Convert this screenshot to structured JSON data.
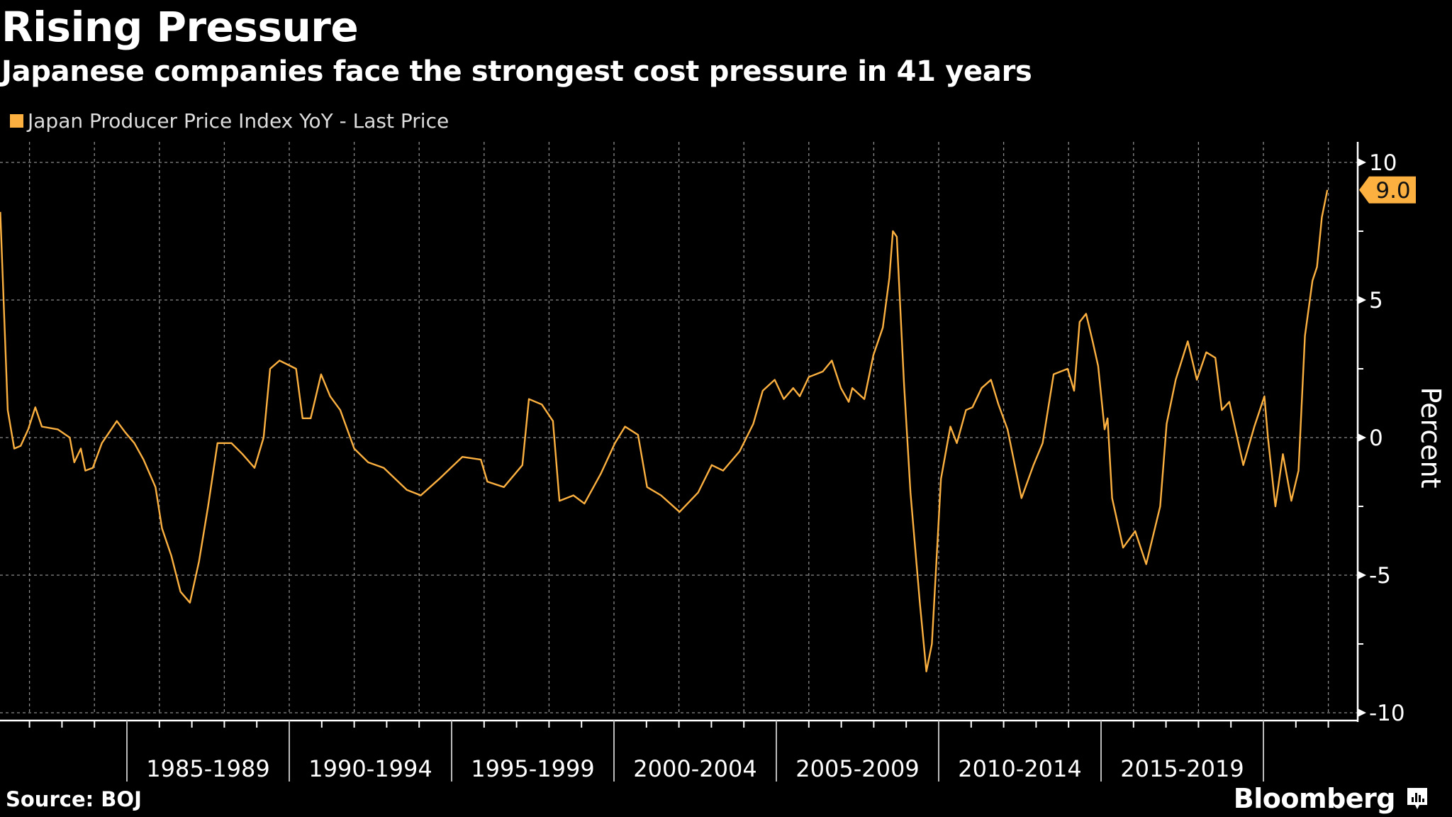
{
  "header": {
    "title": "Rising Pressure",
    "subtitle": "Japanese companies face the strongest cost pressure in 41 years"
  },
  "footer": {
    "source": "Source: BOJ",
    "brand": "Bloomberg"
  },
  "colors": {
    "series": "#fbb040",
    "background": "#000000",
    "grid": "#8a8a8a",
    "axis": "#ffffff"
  },
  "chart_data": {
    "type": "line",
    "title": "Rising Pressure",
    "subtitle": "Japanese companies face the strongest cost pressure in 41 years",
    "xlabel": "",
    "ylabel": "Percent",
    "ylim": [
      -10,
      10
    ],
    "xlim": [
      1981.1,
      2022.8
    ],
    "y_ticks": [
      10,
      5,
      0,
      -5,
      -10
    ],
    "y_tick_labels": [
      "10",
      "5",
      "0",
      "-5",
      "-10"
    ],
    "x_period_labels": [
      {
        "label": "1985-1989",
        "start": 1985,
        "end": 1990
      },
      {
        "label": "1990-1994",
        "start": 1990,
        "end": 1995
      },
      {
        "label": "1995-1999",
        "start": 1995,
        "end": 2000
      },
      {
        "label": "2000-2004",
        "start": 2000,
        "end": 2005
      },
      {
        "label": "2005-2009",
        "start": 2005,
        "end": 2010
      },
      {
        "label": "2010-2014",
        "start": 2010,
        "end": 2015
      },
      {
        "label": "2015-2019",
        "start": 2015,
        "end": 2020
      }
    ],
    "grid": true,
    "legend": {
      "position": "top-left",
      "entries": [
        "Japan Producer Price Index YoY - Last Price"
      ]
    },
    "last_value_label": "9.0",
    "series": [
      {
        "name": "Japan Producer Price Index YoY - Last Price",
        "color": "#fbb040",
        "x": [
          1981.1,
          1981.33,
          1981.53,
          1981.73,
          1981.96,
          1982.18,
          1982.38,
          1982.87,
          1983.24,
          1983.38,
          1983.58,
          1983.72,
          1983.95,
          1984.23,
          1984.46,
          1984.69,
          1984.94,
          1985.23,
          1985.51,
          1985.88,
          1986.08,
          1986.37,
          1986.65,
          1986.94,
          1987.22,
          1987.5,
          1987.79,
          1988.22,
          1988.56,
          1988.93,
          1989.21,
          1989.41,
          1989.7,
          1990.21,
          1990.41,
          1990.66,
          1990.98,
          1991.26,
          1991.57,
          1992.0,
          1992.43,
          1992.91,
          1993.62,
          1994.05,
          1994.62,
          1995.33,
          1995.9,
          1996.1,
          1996.61,
          1997.18,
          1997.38,
          1997.78,
          1998.12,
          1998.32,
          1998.75,
          1999.09,
          1999.6,
          2000.03,
          2000.34,
          2000.74,
          2001.02,
          2001.45,
          2002.02,
          2002.59,
          2003.01,
          2003.36,
          2003.87,
          2004.29,
          2004.58,
          2004.95,
          2005.23,
          2005.52,
          2005.72,
          2006.0,
          2006.43,
          2006.71,
          2006.99,
          2007.23,
          2007.34,
          2007.71,
          2007.99,
          2008.28,
          2008.48,
          2008.59,
          2008.71,
          2008.93,
          2009.13,
          2009.42,
          2009.62,
          2009.79,
          2010.07,
          2010.36,
          2010.56,
          2010.84,
          2011.04,
          2011.32,
          2011.61,
          2011.84,
          2012.12,
          2012.55,
          2012.92,
          2013.2,
          2013.54,
          2013.97,
          2014.17,
          2014.34,
          2014.54,
          2014.74,
          2014.91,
          2015.11,
          2015.2,
          2015.34,
          2015.68,
          2016.05,
          2016.39,
          2016.82,
          2017.02,
          2017.3,
          2017.67,
          2017.95,
          2018.24,
          2018.52,
          2018.72,
          2018.95,
          2019.38,
          2019.72,
          2020.03,
          2020.14,
          2020.37,
          2020.6,
          2020.86,
          2021.08,
          2021.28,
          2021.51,
          2021.65,
          2021.8,
          2021.97
        ],
        "values": [
          8.2,
          1.0,
          -0.4,
          -0.3,
          0.3,
          1.1,
          0.4,
          0.3,
          0.0,
          -0.9,
          -0.4,
          -1.2,
          -1.1,
          -0.2,
          0.2,
          0.6,
          0.2,
          -0.2,
          -0.8,
          -1.8,
          -3.3,
          -4.3,
          -5.6,
          -6.0,
          -4.5,
          -2.5,
          -0.2,
          -0.2,
          -0.6,
          -1.1,
          0.0,
          2.5,
          2.8,
          2.5,
          0.7,
          0.7,
          2.3,
          1.5,
          1.0,
          -0.4,
          -0.9,
          -1.1,
          -1.9,
          -2.1,
          -1.5,
          -0.7,
          -0.8,
          -1.6,
          -1.8,
          -1.0,
          1.4,
          1.2,
          0.6,
          -2.3,
          -2.1,
          -2.4,
          -1.3,
          -0.2,
          0.4,
          0.1,
          -1.8,
          -2.1,
          -2.7,
          -2.0,
          -1.0,
          -1.2,
          -0.5,
          0.5,
          1.7,
          2.1,
          1.4,
          1.8,
          1.5,
          2.2,
          2.4,
          2.8,
          1.8,
          1.3,
          1.8,
          1.4,
          3.0,
          4.0,
          5.8,
          7.5,
          7.3,
          2.0,
          -2.0,
          -6.0,
          -8.5,
          -7.5,
          -1.5,
          0.4,
          -0.2,
          1.0,
          1.1,
          1.8,
          2.1,
          1.2,
          0.3,
          -2.2,
          -1.0,
          -0.2,
          2.3,
          2.5,
          1.7,
          4.2,
          4.5,
          3.5,
          2.6,
          0.3,
          0.7,
          -2.2,
          -4.0,
          -3.4,
          -4.6,
          -2.5,
          0.5,
          2.1,
          3.5,
          2.1,
          3.1,
          2.9,
          1.0,
          1.3,
          -1.0,
          0.4,
          1.5,
          0.0,
          -2.5,
          -0.6,
          -2.3,
          -1.2,
          3.7,
          5.7,
          6.2,
          8.0,
          9.0
        ]
      }
    ]
  }
}
